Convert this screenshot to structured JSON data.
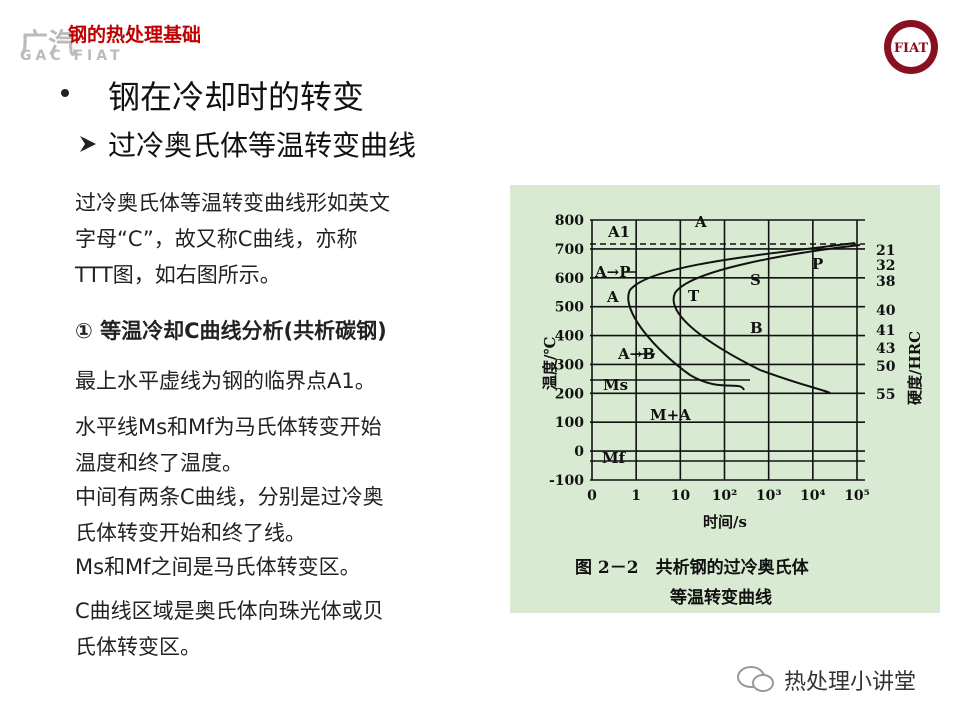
{
  "header": {
    "logo_cn": "广汽",
    "logo_en": "GAC FIAT",
    "title": "钢的热处理基础",
    "badge": "FIAT"
  },
  "heading": "钢在冷却时的转变",
  "subheading": "过冷奥氏体等温转变曲线",
  "paragraphs": [
    [
      "过冷奥氏体等温转变曲线形如英文",
      "字母“C”，故又称C曲线，亦称",
      "TTT图，如右图所示。"
    ],
    [
      "① 等温冷却C曲线分析(共析碳钢)"
    ],
    [
      "最上水平虚线为钢的临界点A1。"
    ],
    [
      "水平线Ms和Mf为马氏体转变开始",
      "温度和终了温度。"
    ],
    [
      "中间有两条C曲线，分别是过冷奥",
      "氏体转变开始和终了线。"
    ],
    [
      "Ms和Mf之间是马氏体转变区。"
    ],
    [
      "C曲线区域是奥氏体向珠光体或贝",
      "氏体转变区。"
    ]
  ],
  "figure": {
    "yticks": [
      800,
      700,
      600,
      500,
      400,
      300,
      200,
      100,
      0,
      -100
    ],
    "xticks": [
      "0",
      "1",
      "10",
      "10²",
      "10³",
      "10⁴",
      "10⁵"
    ],
    "ylabel": "温度/℃",
    "xlabel": "时间/s",
    "y2label": "硬度/HRC",
    "hardness": [
      21,
      32,
      38,
      40,
      41,
      43,
      50,
      55
    ],
    "regions": {
      "a_top": "A",
      "a1": "A1",
      "a_to_p": "A→P",
      "a_left": "A",
      "t": "T",
      "s": "S",
      "p": "P",
      "b": "B",
      "a_to_b": "A→B",
      "ms": "Ms",
      "m_a": "M+A",
      "mf": "Mf"
    },
    "caption": [
      "图 2－2　共析钢的过冷奥氏体",
      "等温转变曲线"
    ]
  },
  "watermark": "热处理小讲堂"
}
